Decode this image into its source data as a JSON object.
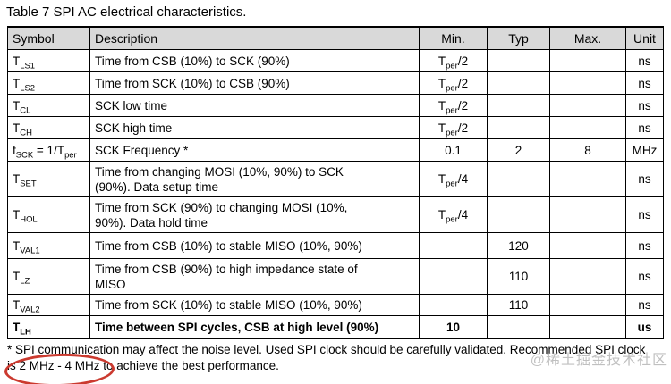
{
  "title": "Table 7 SPI AC electrical characteristics.",
  "table": {
    "headers": {
      "symbol": "Symbol",
      "description": "Description",
      "min": "Min.",
      "typ": "Typ",
      "max": "Max.",
      "unit": "Unit"
    },
    "rows": [
      {
        "symbol": "T_{LS1}",
        "description": "Time from CSB (10%) to SCK (90%)",
        "min": "T_{per}/2",
        "typ": "",
        "max": "",
        "unit": "ns"
      },
      {
        "symbol": "T_{LS2}",
        "description": "Time from SCK (10%) to CSB (90%)",
        "min": "T_{per}/2",
        "typ": "",
        "max": "",
        "unit": "ns"
      },
      {
        "symbol": "T_{CL}",
        "description": "SCK low time",
        "min": "T_{per}/2",
        "typ": "",
        "max": "",
        "unit": "ns"
      },
      {
        "symbol": "T_{CH}",
        "description": "SCK high time",
        "min": "T_{per}/2",
        "typ": "",
        "max": "",
        "unit": "ns"
      },
      {
        "symbol": "f_{SCK} = 1/T_{per}",
        "description": "SCK Frequency *",
        "min": "0.1",
        "typ": "2",
        "max": "8",
        "unit": "MHz"
      },
      {
        "symbol": "T_{SET}",
        "description": "Time from changing MOSI (10%, 90%) to SCK\n(90%). Data setup time",
        "min": "T_{per}/4",
        "typ": "",
        "max": "",
        "unit": "ns"
      },
      {
        "symbol": "T_{HOL}",
        "description": "Time from SCK (90%) to changing MOSI (10%,\n90%). Data hold time",
        "min": "T_{per}/4",
        "typ": "",
        "max": "",
        "unit": "ns"
      },
      {
        "symbol": "T_{VAL1}",
        "description": "Time from CSB (10%) to stable MISO (10%, 90%)",
        "min": "",
        "typ": "120",
        "max": "",
        "unit": "ns"
      },
      {
        "symbol": "T_{LZ}",
        "description": "Time from CSB (90%) to high impedance state of\nMISO",
        "min": "",
        "typ": "110",
        "max": "",
        "unit": "ns"
      },
      {
        "symbol": "T_{VAL2}",
        "description": "Time from SCK (10%) to stable MISO (10%, 90%)",
        "min": "",
        "typ": "110",
        "max": "",
        "unit": "ns"
      },
      {
        "symbol": "T_{LH}",
        "description": "Time between SPI cycles, CSB at high level (90%)",
        "min": "10",
        "typ": "",
        "max": "",
        "unit": "us",
        "bold": true
      }
    ]
  },
  "footnote": {
    "text": "* SPI communication may affect the noise level. Used SPI clock should be carefully validated. Recommended SPI clock\nis 2 MHz - 4 MHz to achieve the best performance."
  },
  "annotation": {
    "highlighted_text": "2 MHz - 4 MHz",
    "color": "#cb3a2f"
  },
  "watermark": "@稀土掘金技术社区",
  "colors": {
    "header_bg": "#d9d9d9",
    "border": "#000000",
    "watermark_gray": "#969696"
  }
}
